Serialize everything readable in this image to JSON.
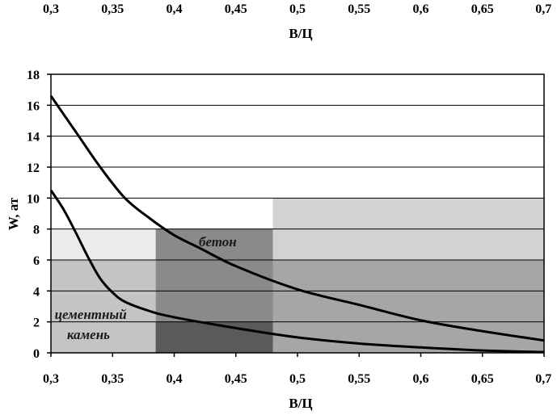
{
  "chart_data": {
    "type": "line",
    "xlabel": "В/Ц",
    "ylabel": "W, ат",
    "xlim": [
      0.3,
      0.7
    ],
    "ylim": [
      0,
      18
    ],
    "x_ticks": [
      "0,3",
      "0,35",
      "0,4",
      "0,45",
      "0,5",
      "0,55",
      "0,6",
      "0,65",
      "0,7"
    ],
    "y_ticks": [
      "0",
      "2",
      "4",
      "6",
      "8",
      "10",
      "12",
      "14",
      "16",
      "18"
    ],
    "grid": "horizontal",
    "top_axis": true,
    "series": [
      {
        "color": "#000000",
        "x": [
          0.3,
          0.32,
          0.34,
          0.36,
          0.38,
          0.4,
          0.42,
          0.45,
          0.5,
          0.55,
          0.6,
          0.65,
          0.7
        ],
        "y": [
          16.6,
          14.3,
          12.0,
          10.0,
          8.7,
          7.6,
          6.8,
          5.6,
          4.1,
          3.1,
          2.1,
          1.4,
          0.8
        ]
      },
      {
        "color": "#000000",
        "x": [
          0.3,
          0.31,
          0.32,
          0.33,
          0.34,
          0.35,
          0.36,
          0.38,
          0.4,
          0.45,
          0.5,
          0.55,
          0.6,
          0.65,
          0.7
        ],
        "y": [
          10.5,
          9.3,
          7.8,
          6.2,
          4.8,
          3.9,
          3.3,
          2.7,
          2.3,
          1.6,
          1.0,
          0.6,
          0.35,
          0.15,
          0.05
        ]
      }
    ],
    "regions": [
      {
        "x": [
          0.3,
          0.385
        ],
        "y": [
          0,
          6
        ],
        "shade": "#c4c4c4"
      },
      {
        "x": [
          0.3,
          0.385
        ],
        "y": [
          6,
          8
        ],
        "shade": "#ececec"
      },
      {
        "x": [
          0.385,
          0.48
        ],
        "y": [
          0,
          8
        ],
        "shade": "#8a8a8a"
      },
      {
        "x": [
          0.385,
          0.48
        ],
        "y": [
          0,
          2
        ],
        "shade": "#5a5a5a"
      },
      {
        "x": [
          0.48,
          0.7
        ],
        "y": [
          0,
          10
        ],
        "shade": "#a6a6a6"
      },
      {
        "x": [
          0.48,
          0.7
        ],
        "y": [
          6,
          10
        ],
        "shade": "#d2d2d2"
      }
    ],
    "annotations": [
      {
        "text": "бетон",
        "x": 0.42,
        "y": 6.9
      },
      {
        "text": "цементный",
        "x": 0.303,
        "y": 2.2
      },
      {
        "text": "камень",
        "x": 0.313,
        "y": 0.9
      }
    ]
  }
}
